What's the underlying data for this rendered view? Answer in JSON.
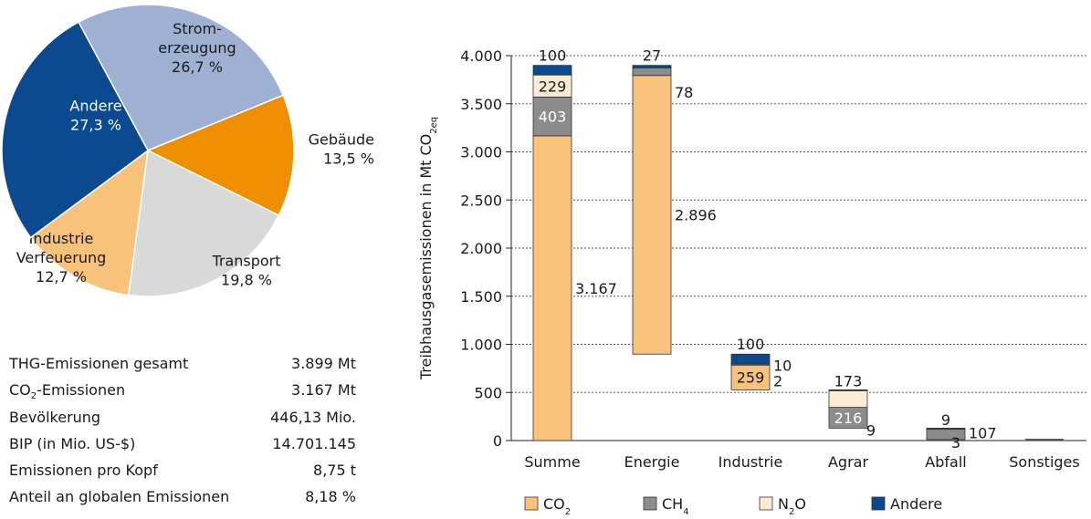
{
  "chart_data": [
    {
      "type": "pie",
      "slices": [
        {
          "label_lines": [
            "Strom-",
            "erzeugung"
          ],
          "value": 26.7,
          "value_label": "26,7 %",
          "color": "#9fb1d3",
          "text_color": "#1a1a1a"
        },
        {
          "label_lines": [
            "Gebäude"
          ],
          "value": 13.5,
          "value_label": "13,5 %",
          "color": "#ef8f00",
          "text_color": "#1a1a1a"
        },
        {
          "label_lines": [
            "Transport"
          ],
          "value": 19.8,
          "value_label": "19,8 %",
          "color": "#d9d9d9",
          "text_color": "#1a1a1a"
        },
        {
          "label_lines": [
            "Industrie",
            "Verfeuerung"
          ],
          "value": 12.7,
          "value_label": "12,7 %",
          "color": "#f8c27a",
          "text_color": "#1a1a1a"
        },
        {
          "label_lines": [
            "Andere"
          ],
          "value": 27.3,
          "value_label": "27,3 %",
          "color": "#0b4a8e",
          "text_color": "#ffffff"
        }
      ]
    },
    {
      "type": "bar",
      "subtype": "waterfall",
      "ylabel": "Treibhausgasemissionen in Mt CO2eq",
      "ylim": [
        0,
        4000
      ],
      "yticks": [
        0,
        500,
        1000,
        1500,
        2000,
        2500,
        3000,
        3500,
        4000
      ],
      "ytick_labels": [
        "0",
        "500",
        "1.000",
        "1.500",
        "2.000",
        "2.500",
        "3.000",
        "3.500",
        "4.000"
      ],
      "grid": "horizontal dotted",
      "categories": [
        "Summe",
        "Energie",
        "Industrie",
        "Agrar",
        "Abfall",
        "Sonstiges"
      ],
      "series": [
        {
          "name": "CO2",
          "color": "#f8c27a",
          "values": [
            3167,
            2896,
            259,
            0,
            0,
            0
          ],
          "labels": [
            "3.167",
            "2.896",
            "259",
            "",
            "",
            ""
          ]
        },
        {
          "name": "CH4",
          "color": "#8c8c8c",
          "values": [
            403,
            78,
            2,
            216,
            107,
            0
          ],
          "labels": [
            "403",
            "78",
            "2",
            "216",
            "107",
            ""
          ]
        },
        {
          "name": "N2O",
          "color": "#fdebd3",
          "values": [
            229,
            0,
            10,
            173,
            9,
            0
          ],
          "labels": [
            "229",
            "",
            "10",
            "173",
            "9",
            ""
          ]
        },
        {
          "name": "Andere",
          "color": "#0b4a8e",
          "values": [
            100,
            27,
            100,
            9,
            3,
            0
          ],
          "labels": [
            "100",
            "27",
            "100",
            "9",
            "3",
            ""
          ]
        }
      ],
      "legend": {
        "position": "bottom"
      }
    }
  ],
  "stats": [
    {
      "label": "THG-Emissionen gesamt",
      "value": "3.899 Mt"
    },
    {
      "label": "CO2-Emissionen",
      "value": "3.167 Mt"
    },
    {
      "label": "Bevölkerung",
      "value": "446,13 Mio."
    },
    {
      "label": "BIP (in Mio. US-$)",
      "value": "14.701.145"
    },
    {
      "label": "Emissionen pro Kopf",
      "value": "8,75 t"
    },
    {
      "label": "Anteil an globalen Emissionen",
      "value": "8,18 %"
    }
  ]
}
